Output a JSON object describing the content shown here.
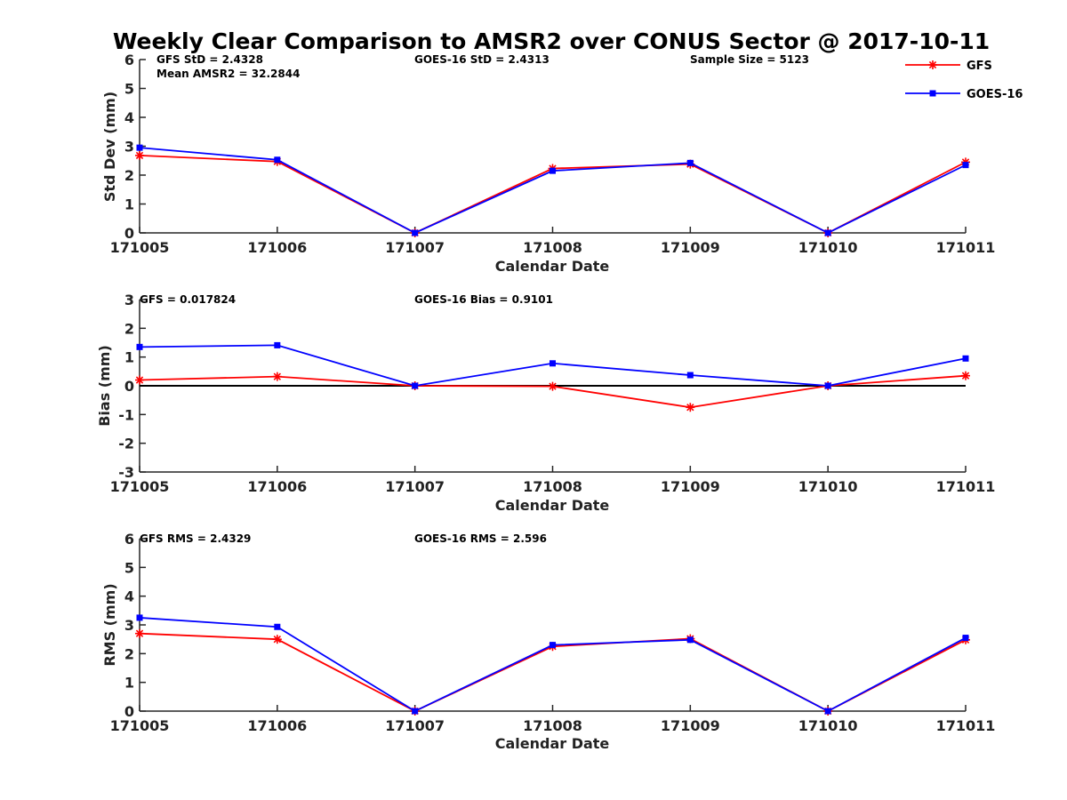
{
  "chart_data": {
    "title": "Weekly Clear Comparison to AMSR2 over CONUS Sector @ 2017-10-11",
    "categories": [
      "171005",
      "171006",
      "171007",
      "171008",
      "171009",
      "171010",
      "171011"
    ],
    "legend": {
      "position": "top-right",
      "entries": [
        {
          "label": "GFS",
          "color": "#ff0000",
          "marker": "asterisk"
        },
        {
          "label": "GOES-16",
          "color": "#0000ff",
          "marker": "square"
        }
      ]
    },
    "panels": [
      {
        "type": "line",
        "xlabel": "Calendar Date",
        "ylabel": "Std Dev (mm)",
        "ylim": [
          0,
          6
        ],
        "yticks": [
          "0",
          "1",
          "2",
          "3",
          "4",
          "5",
          "6"
        ],
        "zero_line": false,
        "annotations": {
          "gfs": "GFS StD = 2.4328",
          "goes": "GOES-16 StD = 2.4313",
          "sample": "Sample Size = 5123",
          "mean": "Mean AMSR2 = 32.2844"
        },
        "series": [
          {
            "name": "GFS",
            "color": "#ff0000",
            "marker": "asterisk",
            "values": [
              2.68,
              2.47,
              0.0,
              2.23,
              2.38,
              0.0,
              2.45
            ]
          },
          {
            "name": "GOES-16",
            "color": "#0000ff",
            "marker": "square",
            "values": [
              2.95,
              2.53,
              0.0,
              2.15,
              2.42,
              0.0,
              2.35
            ]
          }
        ]
      },
      {
        "type": "line",
        "xlabel": "Calendar Date",
        "ylabel": "Bias (mm)",
        "ylim": [
          -3,
          3
        ],
        "yticks": [
          "-3",
          "-2",
          "-1",
          "0",
          "1",
          "2",
          "3"
        ],
        "zero_line": true,
        "annotations": {
          "gfs": "GFS = 0.017824",
          "goes": "GOES-16 Bias  = 0.9101"
        },
        "series": [
          {
            "name": "GFS",
            "color": "#ff0000",
            "marker": "asterisk",
            "values": [
              0.2,
              0.32,
              0.0,
              -0.02,
              -0.75,
              0.0,
              0.35
            ]
          },
          {
            "name": "GOES-16",
            "color": "#0000ff",
            "marker": "square",
            "values": [
              1.35,
              1.41,
              0.0,
              0.78,
              0.37,
              0.0,
              0.95
            ]
          }
        ]
      },
      {
        "type": "line",
        "xlabel": "Calendar Date",
        "ylabel": "RMS (mm)",
        "ylim": [
          0,
          6
        ],
        "yticks": [
          "0",
          "1",
          "2",
          "3",
          "4",
          "5",
          "6"
        ],
        "zero_line": false,
        "annotations": {
          "gfs": "GFS RMS = 2.4329",
          "goes": "GOES-16 RMS = 2.596"
        },
        "series": [
          {
            "name": "GFS",
            "color": "#ff0000",
            "marker": "asterisk",
            "values": [
              2.7,
              2.5,
              0.0,
              2.25,
              2.52,
              0.0,
              2.48
            ]
          },
          {
            "name": "GOES-16",
            "color": "#0000ff",
            "marker": "square",
            "values": [
              3.25,
              2.93,
              0.0,
              2.3,
              2.48,
              0.0,
              2.55
            ]
          }
        ]
      }
    ]
  }
}
